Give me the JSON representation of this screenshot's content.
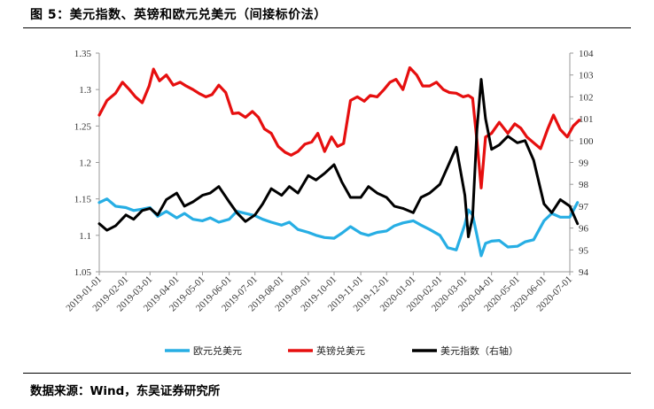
{
  "figure": {
    "title": "图 5：美元指数、英镑和欧元兑美元（间接标价法）",
    "source": "数据来源：Wind，东吴证券研究所"
  },
  "chart_data": {
    "type": "line",
    "title": "",
    "x": [
      "2019-01-01",
      "2019-02-01",
      "2019-03-01",
      "2019-04-01",
      "2019-05-01",
      "2019-06-01",
      "2019-07-01",
      "2019-08-01",
      "2019-09-01",
      "2019-10-01",
      "2019-11-01",
      "2019-12-01",
      "2020-01-01",
      "2020-02-01",
      "2020-03-01",
      "2020-04-01",
      "2020-05-01",
      "2020-06-01",
      "2020-07-01"
    ],
    "y_left": {
      "ylim": [
        1.05,
        1.35
      ],
      "ticks": [
        "1.05",
        "1.1",
        "1.15",
        "1.2",
        "1.25",
        "1.3",
        "1.35"
      ]
    },
    "y_right": {
      "ylim": [
        94,
        104
      ],
      "ticks": [
        "94",
        "95",
        "96",
        "97",
        "98",
        "99",
        "100",
        "101",
        "102",
        "103",
        "104"
      ]
    },
    "grid": false,
    "legend_position": "bottom",
    "colors": {
      "eurusd": "#27aee4",
      "gbpusd": "#e60f0f",
      "dxy": "#000000"
    },
    "series": [
      {
        "name": "欧元兑美元",
        "axis": "left",
        "x": [
          "2019-01-01",
          "2019-01-10",
          "2019-01-20",
          "2019-02-01",
          "2019-02-10",
          "2019-02-20",
          "2019-03-01",
          "2019-03-10",
          "2019-03-20",
          "2019-04-01",
          "2019-04-10",
          "2019-04-20",
          "2019-05-01",
          "2019-05-10",
          "2019-05-20",
          "2019-06-01",
          "2019-06-10",
          "2019-06-20",
          "2019-07-01",
          "2019-07-10",
          "2019-07-20",
          "2019-08-01",
          "2019-08-10",
          "2019-08-20",
          "2019-09-01",
          "2019-09-10",
          "2019-09-20",
          "2019-10-01",
          "2019-10-10",
          "2019-10-20",
          "2019-11-01",
          "2019-11-10",
          "2019-11-20",
          "2019-12-01",
          "2019-12-10",
          "2019-12-20",
          "2020-01-01",
          "2020-01-10",
          "2020-01-20",
          "2020-02-01",
          "2020-02-10",
          "2020-02-20",
          "2020-03-01",
          "2020-03-05",
          "2020-03-10",
          "2020-03-15",
          "2020-03-20",
          "2020-03-25",
          "2020-04-01",
          "2020-04-10",
          "2020-04-20",
          "2020-05-01",
          "2020-05-10",
          "2020-05-20",
          "2020-06-01",
          "2020-06-10",
          "2020-06-20",
          "2020-07-01",
          "2020-07-10"
        ],
        "values": [
          1.145,
          1.15,
          1.14,
          1.138,
          1.134,
          1.136,
          1.138,
          1.126,
          1.133,
          1.124,
          1.13,
          1.122,
          1.12,
          1.124,
          1.118,
          1.122,
          1.133,
          1.13,
          1.127,
          1.122,
          1.118,
          1.114,
          1.118,
          1.108,
          1.104,
          1.1,
          1.097,
          1.096,
          1.103,
          1.112,
          1.103,
          1.1,
          1.104,
          1.106,
          1.113,
          1.117,
          1.12,
          1.114,
          1.108,
          1.1,
          1.083,
          1.08,
          1.115,
          1.135,
          1.128,
          1.1,
          1.072,
          1.089,
          1.092,
          1.093,
          1.084,
          1.085,
          1.091,
          1.094,
          1.12,
          1.13,
          1.125,
          1.125,
          1.145
        ]
      },
      {
        "name": "英镑兑美元",
        "axis": "left",
        "x": [
          "2019-01-01",
          "2019-01-10",
          "2019-01-20",
          "2019-01-28",
          "2019-02-05",
          "2019-02-12",
          "2019-02-20",
          "2019-02-28",
          "2019-03-05",
          "2019-03-12",
          "2019-03-20",
          "2019-03-28",
          "2019-04-05",
          "2019-04-12",
          "2019-04-20",
          "2019-04-28",
          "2019-05-05",
          "2019-05-12",
          "2019-05-20",
          "2019-05-28",
          "2019-06-05",
          "2019-06-12",
          "2019-06-20",
          "2019-06-28",
          "2019-07-05",
          "2019-07-12",
          "2019-07-20",
          "2019-07-28",
          "2019-08-05",
          "2019-08-12",
          "2019-08-20",
          "2019-08-28",
          "2019-09-05",
          "2019-09-12",
          "2019-09-20",
          "2019-09-28",
          "2019-10-05",
          "2019-10-12",
          "2019-10-20",
          "2019-10-28",
          "2019-11-05",
          "2019-11-12",
          "2019-11-20",
          "2019-11-28",
          "2019-12-05",
          "2019-12-12",
          "2019-12-20",
          "2019-12-28",
          "2020-01-05",
          "2020-01-12",
          "2020-01-20",
          "2020-01-28",
          "2020-02-05",
          "2020-02-12",
          "2020-02-20",
          "2020-02-28",
          "2020-03-05",
          "2020-03-10",
          "2020-03-15",
          "2020-03-20",
          "2020-03-25",
          "2020-04-01",
          "2020-04-10",
          "2020-04-20",
          "2020-04-28",
          "2020-05-05",
          "2020-05-12",
          "2020-05-20",
          "2020-05-28",
          "2020-06-05",
          "2020-06-12",
          "2020-06-20",
          "2020-06-28",
          "2020-07-05",
          "2020-07-12"
        ],
        "values": [
          1.265,
          1.285,
          1.295,
          1.31,
          1.3,
          1.29,
          1.282,
          1.305,
          1.328,
          1.312,
          1.32,
          1.306,
          1.31,
          1.305,
          1.3,
          1.294,
          1.29,
          1.293,
          1.306,
          1.296,
          1.267,
          1.268,
          1.262,
          1.27,
          1.262,
          1.246,
          1.24,
          1.222,
          1.214,
          1.21,
          1.215,
          1.225,
          1.228,
          1.24,
          1.215,
          1.235,
          1.222,
          1.226,
          1.285,
          1.29,
          1.284,
          1.292,
          1.29,
          1.3,
          1.31,
          1.314,
          1.3,
          1.33,
          1.32,
          1.305,
          1.305,
          1.31,
          1.3,
          1.296,
          1.295,
          1.29,
          1.292,
          1.288,
          1.23,
          1.165,
          1.235,
          1.24,
          1.255,
          1.24,
          1.253,
          1.247,
          1.235,
          1.227,
          1.219,
          1.245,
          1.265,
          1.245,
          1.235,
          1.25,
          1.258
        ]
      },
      {
        "name": "美元指数（右轴）",
        "axis": "right",
        "x": [
          "2019-01-01",
          "2019-01-10",
          "2019-01-20",
          "2019-02-01",
          "2019-02-10",
          "2019-02-20",
          "2019-03-01",
          "2019-03-10",
          "2019-03-20",
          "2019-04-01",
          "2019-04-10",
          "2019-04-20",
          "2019-05-01",
          "2019-05-10",
          "2019-05-20",
          "2019-06-01",
          "2019-06-10",
          "2019-06-20",
          "2019-07-01",
          "2019-07-10",
          "2019-07-20",
          "2019-08-01",
          "2019-08-10",
          "2019-08-20",
          "2019-09-01",
          "2019-09-10",
          "2019-09-20",
          "2019-10-01",
          "2019-10-10",
          "2019-10-20",
          "2019-11-01",
          "2019-11-10",
          "2019-11-20",
          "2019-12-01",
          "2019-12-10",
          "2019-12-20",
          "2020-01-01",
          "2020-01-10",
          "2020-01-20",
          "2020-02-01",
          "2020-02-10",
          "2020-02-20",
          "2020-03-01",
          "2020-03-05",
          "2020-03-10",
          "2020-03-15",
          "2020-03-20",
          "2020-03-25",
          "2020-04-01",
          "2020-04-10",
          "2020-04-20",
          "2020-05-01",
          "2020-05-10",
          "2020-05-20",
          "2020-06-01",
          "2020-06-10",
          "2020-06-20",
          "2020-07-01",
          "2020-07-10"
        ],
        "values": [
          96.2,
          95.9,
          96.1,
          96.6,
          96.4,
          96.8,
          96.9,
          96.6,
          97.3,
          97.6,
          97.0,
          97.2,
          97.5,
          97.6,
          97.9,
          97.2,
          96.7,
          96.3,
          96.6,
          97.1,
          97.8,
          97.5,
          97.9,
          97.6,
          98.4,
          98.2,
          98.5,
          98.9,
          98.1,
          97.4,
          97.4,
          97.9,
          97.6,
          97.4,
          97.0,
          96.9,
          96.7,
          97.4,
          97.6,
          98.0,
          98.8,
          99.7,
          97.5,
          95.6,
          96.5,
          100.5,
          102.8,
          101.0,
          99.6,
          99.8,
          100.2,
          99.9,
          100.0,
          99.1,
          97.1,
          96.7,
          97.3,
          97.0,
          96.2
        ]
      }
    ]
  }
}
